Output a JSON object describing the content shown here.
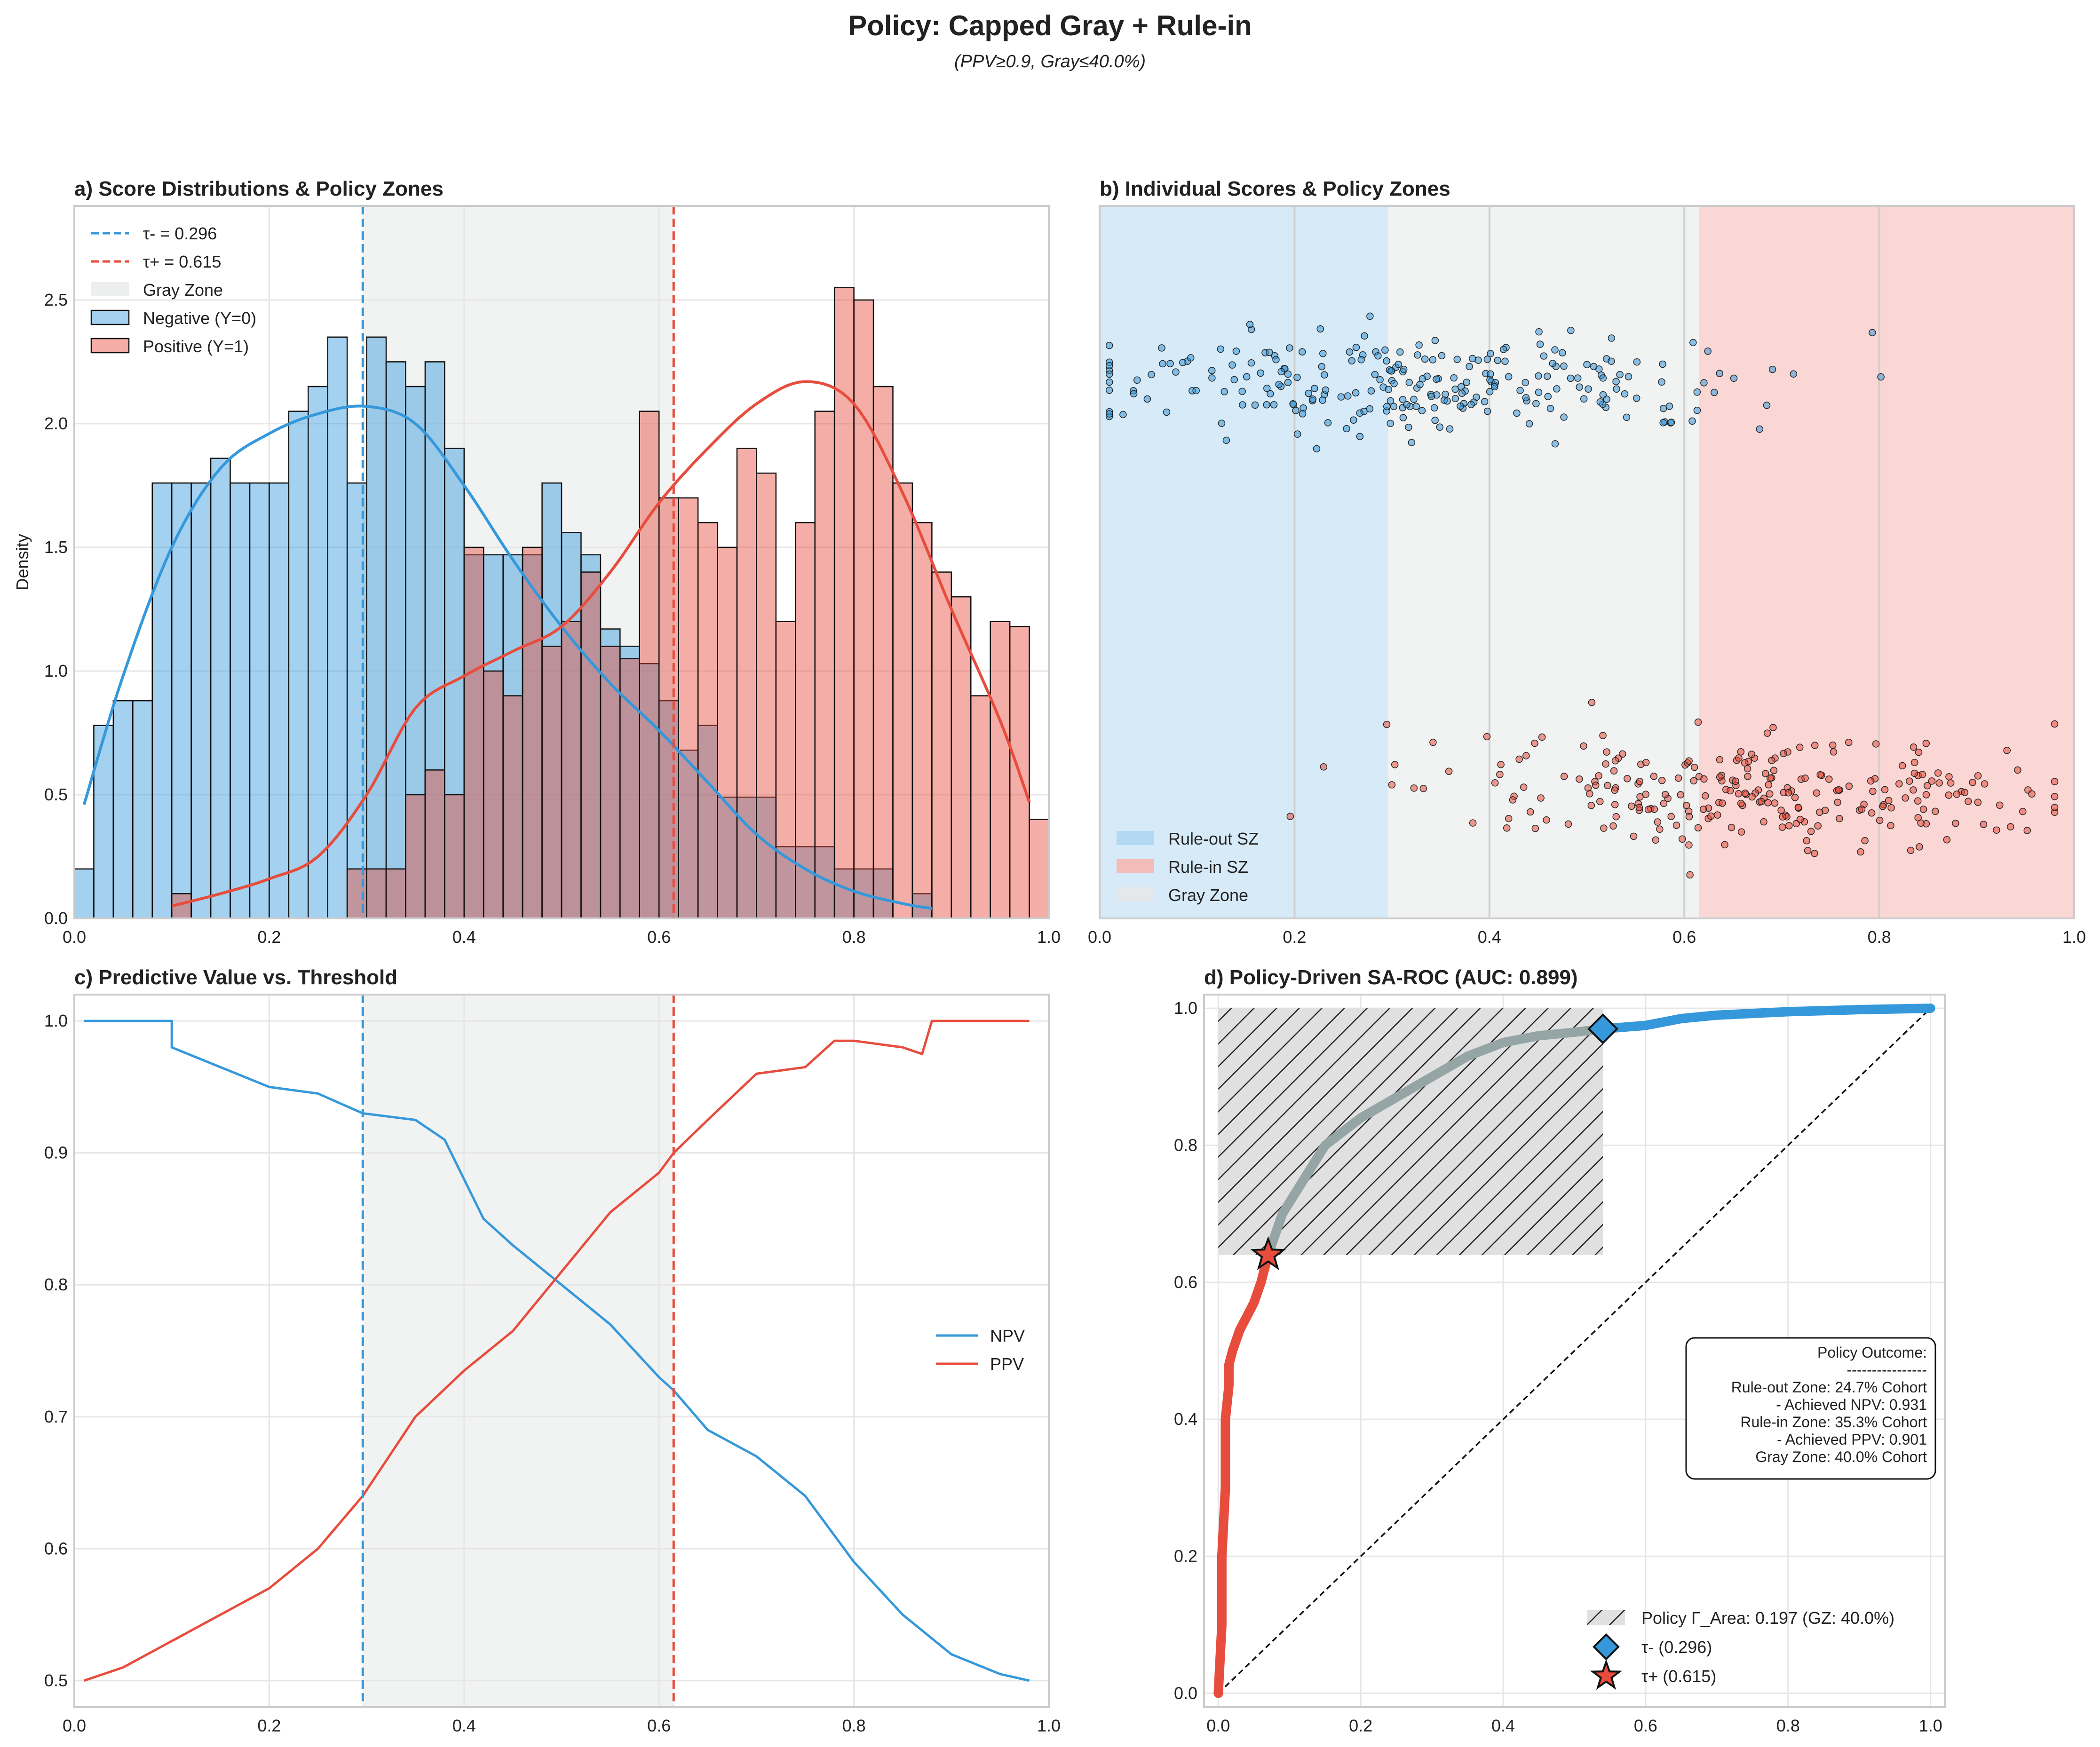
{
  "figure": {
    "title": "Policy: Capped Gray + Rule-in",
    "subtitle": "(PPV≥0.9, Gray≤40.0%)"
  },
  "colors": {
    "negative": "#3498db",
    "positive": "#e74c3c",
    "gray_zone": "#e5e8e8",
    "rule_out": "#aed6f1",
    "rule_in": "#f5b7b1",
    "grid": "#e6e6e6",
    "roc_gray": "#95a5a6"
  },
  "chart_data": [
    {
      "panel": "a",
      "type": "bar",
      "title": "a) Score Distributions & Policy Zones",
      "xlabel": "",
      "ylabel": "Density",
      "xlim": [
        0,
        1
      ],
      "ylim": [
        0,
        2.88
      ],
      "xticks": [
        "0.0",
        "0.2",
        "0.4",
        "0.6",
        "0.8",
        "1.0"
      ],
      "yticks": [
        "0.0",
        "0.5",
        "1.0",
        "1.5",
        "2.0",
        "2.5"
      ],
      "grid": true,
      "legend_position": "top-left",
      "thresholds": {
        "tau_minus": 0.296,
        "tau_plus": 0.615
      },
      "legend": [
        "τ- = 0.296",
        "τ+ = 0.615",
        "Gray Zone",
        "Negative (Y=0)",
        "Positive (Y=1)"
      ],
      "bin_width": 0.02,
      "bin_start": 0.0,
      "series": [
        {
          "name": "Negative (Y=0)",
          "values": [
            0.2,
            0.78,
            0.88,
            0.88,
            1.76,
            1.76,
            1.76,
            1.86,
            1.76,
            1.76,
            1.76,
            2.05,
            2.15,
            2.35,
            1.76,
            2.35,
            2.25,
            2.15,
            2.25,
            1.9,
            1.47,
            1.47,
            1.47,
            1.47,
            1.76,
            1.56,
            1.47,
            1.17,
            1.1,
            1.03,
            0.88,
            0.68,
            0.78,
            0.49,
            0.49,
            0.49,
            0.29,
            0.29,
            0.29,
            0.2,
            0.2,
            0.2,
            0.0,
            0.1,
            0.0,
            0.0,
            0.0,
            0.0,
            0.0,
            0.0
          ],
          "kde": [
            [
              0.01,
              0.46
            ],
            [
              0.05,
              0.98
            ],
            [
              0.1,
              1.5
            ],
            [
              0.15,
              1.82
            ],
            [
              0.2,
              1.96
            ],
            [
              0.25,
              2.04
            ],
            [
              0.3,
              2.07
            ],
            [
              0.35,
              2.0
            ],
            [
              0.4,
              1.75
            ],
            [
              0.45,
              1.45
            ],
            [
              0.5,
              1.18
            ],
            [
              0.55,
              0.95
            ],
            [
              0.6,
              0.76
            ],
            [
              0.65,
              0.55
            ],
            [
              0.7,
              0.34
            ],
            [
              0.75,
              0.2
            ],
            [
              0.8,
              0.11
            ],
            [
              0.85,
              0.06
            ],
            [
              0.88,
              0.04
            ]
          ]
        },
        {
          "name": "Positive (Y=1)",
          "values": [
            0.0,
            0.0,
            0.0,
            0.0,
            0.0,
            0.1,
            0.0,
            0.0,
            0.0,
            0.0,
            0.0,
            0.0,
            0.0,
            0.0,
            0.2,
            0.2,
            0.2,
            0.5,
            0.6,
            0.5,
            1.5,
            1.0,
            0.9,
            1.5,
            1.1,
            1.2,
            1.4,
            1.1,
            1.05,
            2.05,
            1.7,
            1.7,
            1.6,
            1.5,
            1.9,
            1.8,
            1.2,
            1.6,
            2.05,
            2.55,
            2.5,
            2.15,
            1.76,
            1.6,
            1.4,
            1.3,
            0.9,
            1.2,
            1.18,
            0.4
          ],
          "kde": [
            [
              0.1,
              0.05
            ],
            [
              0.15,
              0.1
            ],
            [
              0.2,
              0.16
            ],
            [
              0.25,
              0.25
            ],
            [
              0.3,
              0.5
            ],
            [
              0.35,
              0.85
            ],
            [
              0.4,
              0.98
            ],
            [
              0.45,
              1.08
            ],
            [
              0.5,
              1.18
            ],
            [
              0.55,
              1.4
            ],
            [
              0.6,
              1.68
            ],
            [
              0.65,
              1.9
            ],
            [
              0.7,
              2.08
            ],
            [
              0.75,
              2.17
            ],
            [
              0.8,
              2.08
            ],
            [
              0.85,
              1.72
            ],
            [
              0.9,
              1.25
            ],
            [
              0.95,
              0.8
            ],
            [
              0.98,
              0.47
            ]
          ]
        }
      ]
    },
    {
      "panel": "b",
      "type": "scatter",
      "title": "b) Individual Scores & Policy Zones",
      "xlabel": "",
      "ylabel": "",
      "xlim": [
        0,
        1
      ],
      "xticks": [
        "0.0",
        "0.2",
        "0.4",
        "0.6",
        "0.8",
        "1.0"
      ],
      "grid": true,
      "legend_position": "bottom-left",
      "legend": [
        "Rule-out SZ",
        "Rule-in SZ",
        "Gray Zone"
      ],
      "zones": {
        "rule_out": [
          0.0,
          0.296
        ],
        "gray": [
          0.296,
          0.615
        ],
        "rule_in": [
          0.615,
          1.0
        ]
      },
      "series": [
        {
          "name": "Negative (Y=0)",
          "row": "upper",
          "n_points": 480,
          "x_range": [
            0.01,
            0.88
          ]
        },
        {
          "name": "Positive (Y=1)",
          "row": "lower",
          "n_points": 480,
          "x_range": [
            0.1,
            0.98
          ]
        }
      ]
    },
    {
      "panel": "c",
      "type": "line",
      "title": "c) Predictive Value vs. Threshold",
      "xlabel": "",
      "ylabel": "",
      "xlim": [
        0,
        1
      ],
      "ylim": [
        0.48,
        1.02
      ],
      "xticks": [
        "0.0",
        "0.2",
        "0.4",
        "0.6",
        "0.8",
        "1.0"
      ],
      "yticks": [
        "0.5",
        "0.6",
        "0.7",
        "0.8",
        "0.9",
        "1.0"
      ],
      "grid": true,
      "legend_position": "center-right",
      "thresholds": {
        "tau_minus": 0.296,
        "tau_plus": 0.615
      },
      "series": [
        {
          "name": "NPV",
          "x": [
            0.01,
            0.05,
            0.1,
            0.1,
            0.15,
            0.2,
            0.25,
            0.296,
            0.35,
            0.38,
            0.4,
            0.42,
            0.45,
            0.5,
            0.55,
            0.6,
            0.615,
            0.65,
            0.7,
            0.75,
            0.8,
            0.85,
            0.9,
            0.95,
            0.98
          ],
          "y": [
            1.0,
            1.0,
            1.0,
            0.98,
            0.965,
            0.95,
            0.945,
            0.93,
            0.925,
            0.91,
            0.88,
            0.85,
            0.83,
            0.8,
            0.77,
            0.73,
            0.72,
            0.69,
            0.67,
            0.64,
            0.59,
            0.55,
            0.52,
            0.505,
            0.5
          ]
        },
        {
          "name": "PPV",
          "x": [
            0.01,
            0.05,
            0.1,
            0.15,
            0.2,
            0.25,
            0.296,
            0.35,
            0.4,
            0.45,
            0.5,
            0.55,
            0.6,
            0.615,
            0.65,
            0.7,
            0.75,
            0.78,
            0.8,
            0.85,
            0.87,
            0.88,
            0.9,
            0.95,
            0.98
          ],
          "y": [
            0.5,
            0.51,
            0.53,
            0.55,
            0.57,
            0.6,
            0.64,
            0.7,
            0.735,
            0.765,
            0.81,
            0.855,
            0.885,
            0.9,
            0.925,
            0.96,
            0.965,
            0.985,
            0.985,
            0.98,
            0.975,
            1.0,
            1.0,
            1.0,
            1.0
          ]
        }
      ]
    },
    {
      "panel": "d",
      "type": "line",
      "title": "d) Policy-Driven SA-ROC (AUC: 0.899)",
      "xlabel": "",
      "ylabel": "",
      "xlim": [
        -0.02,
        1.02
      ],
      "ylim": [
        -0.02,
        1.02
      ],
      "xticks": [
        "0.0",
        "0.2",
        "0.4",
        "0.6",
        "0.8",
        "1.0"
      ],
      "yticks": [
        "0.0",
        "0.2",
        "0.4",
        "0.6",
        "0.8",
        "1.0"
      ],
      "grid": true,
      "legend_position": "bottom-right",
      "gamma_area_box": {
        "fpr": [
          0.0,
          0.54
        ],
        "tpr": [
          0.64,
          1.0
        ]
      },
      "points": {
        "tau_minus": {
          "fpr": 0.54,
          "tpr": 0.97,
          "label": "τ- (0.296)"
        },
        "tau_plus": {
          "fpr": 0.07,
          "tpr": 0.64,
          "label": "τ+ (0.615)"
        }
      },
      "legend": [
        "Policy Γ_Area: 0.197 (GZ: 40.0%)",
        "τ- (0.296)",
        "τ+ (0.615)"
      ],
      "series": [
        {
          "name": "rule-in segment",
          "fpr": [
            0.0,
            0.005,
            0.005,
            0.01,
            0.01,
            0.015,
            0.015,
            0.02,
            0.03,
            0.04,
            0.05,
            0.06,
            0.07
          ],
          "tpr": [
            0.0,
            0.1,
            0.2,
            0.3,
            0.4,
            0.45,
            0.48,
            0.5,
            0.53,
            0.55,
            0.57,
            0.6,
            0.64
          ]
        },
        {
          "name": "gray segment",
          "fpr": [
            0.07,
            0.09,
            0.12,
            0.15,
            0.2,
            0.25,
            0.3,
            0.35,
            0.4,
            0.45,
            0.5,
            0.54
          ],
          "tpr": [
            0.64,
            0.7,
            0.75,
            0.8,
            0.84,
            0.87,
            0.9,
            0.93,
            0.95,
            0.96,
            0.965,
            0.97
          ]
        },
        {
          "name": "rule-out segment",
          "fpr": [
            0.54,
            0.6,
            0.65,
            0.7,
            0.8,
            0.9,
            1.0
          ],
          "tpr": [
            0.97,
            0.975,
            0.985,
            0.99,
            0.995,
            0.998,
            1.0
          ]
        },
        {
          "name": "chance",
          "fpr": [
            0,
            1
          ],
          "tpr": [
            0,
            1
          ]
        }
      ],
      "outcome_box": {
        "lines": [
          "Policy Outcome:",
          "----------------",
          "Rule-out Zone: 24.7% Cohort",
          "- Achieved NPV: 0.931",
          "Rule-in Zone: 35.3% Cohort",
          "- Achieved PPV: 0.901",
          "Gray Zone: 40.0% Cohort"
        ]
      }
    }
  ]
}
